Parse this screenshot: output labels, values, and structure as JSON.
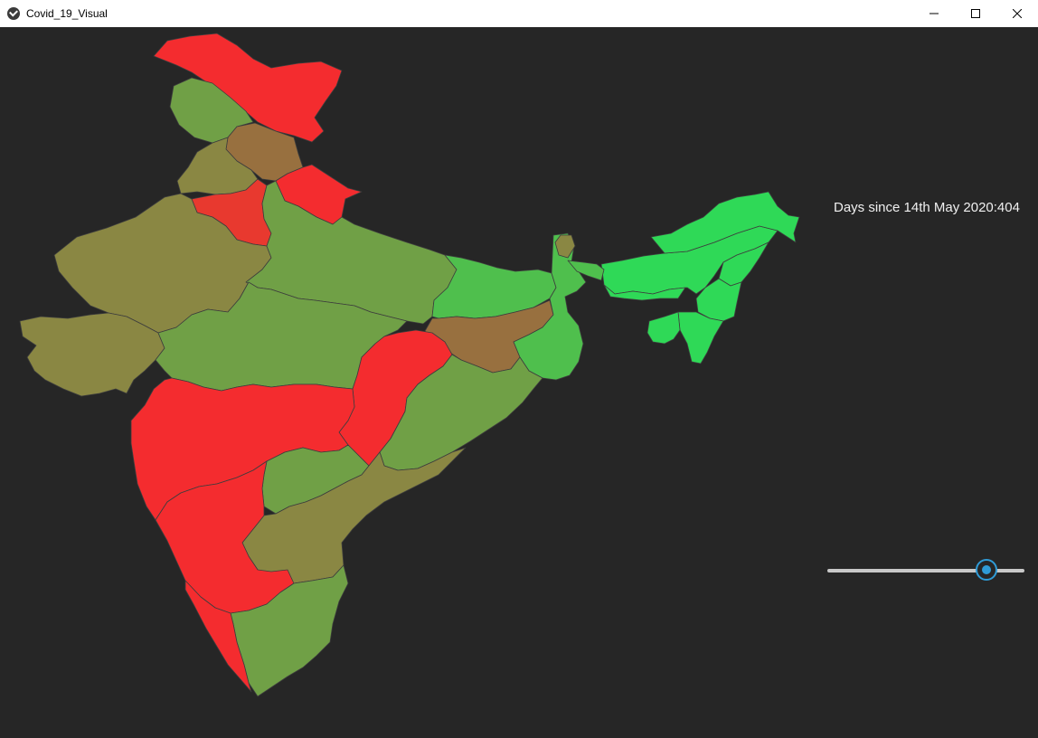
{
  "window": {
    "title": "Covid_19_Visual",
    "icon": "kivy-app-icon",
    "controls": [
      "minimize-icon",
      "maximize-icon",
      "close-icon"
    ]
  },
  "day_label": "Days since 14th May 2020:404",
  "slider": {
    "value_fraction": 0.81
  },
  "map": {
    "colors": {
      "red": "#f42c2f",
      "olive": "#8a8743",
      "green": "#70a046",
      "brown": "#98703f",
      "lightgreen": "#4fbf4d",
      "brightgreen": "#2fd957",
      "orange_red": "#e8392f"
    }
  }
}
